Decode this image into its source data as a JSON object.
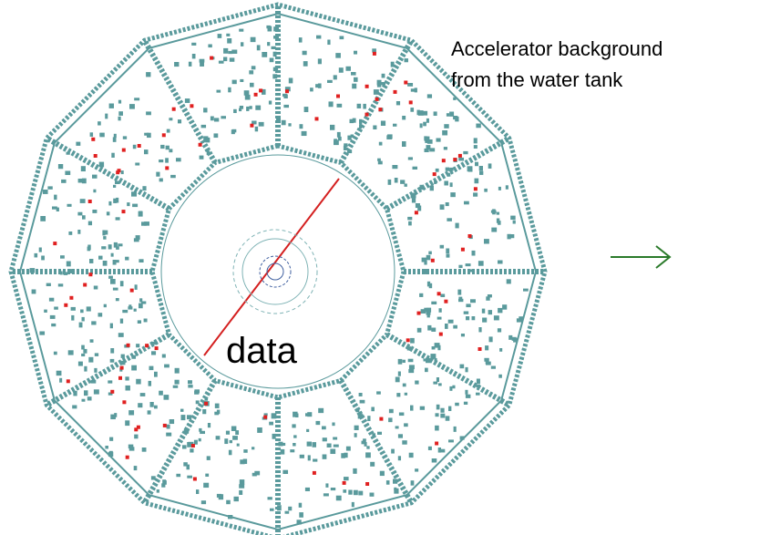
{
  "annotation": {
    "lines": [
      "Accelerator background",
      "from the water tank"
    ]
  },
  "label": "data"
}
